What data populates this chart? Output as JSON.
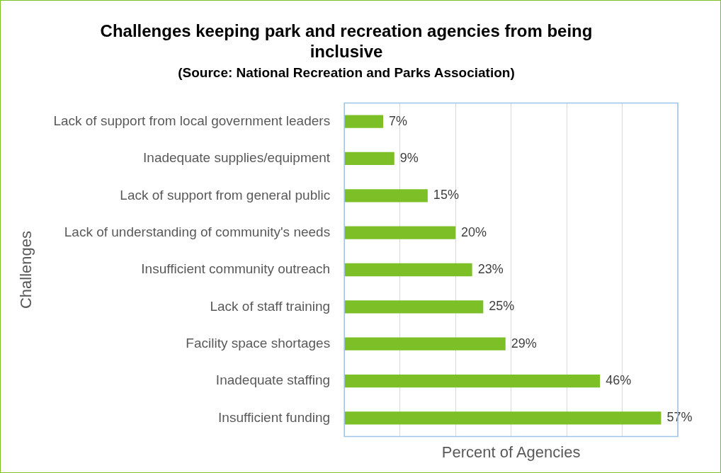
{
  "chart_data": {
    "type": "bar",
    "orientation": "horizontal",
    "title": "Challenges keeping park and recreation agencies from being inclusive",
    "subtitle": "(Source: National Recreation and Parks Association)",
    "xlabel": "Percent of Agencies",
    "ylabel": "Challenges",
    "categories": [
      "Lack of support from local government leaders",
      "Inadequate supplies/equipment",
      "Lack of support from general public",
      "Lack of understanding of community's needs",
      "Insufficient community outreach",
      "Lack of staff training",
      "Facility space shortages",
      "Inadequate staffing",
      "Insufficient funding"
    ],
    "values": [
      7,
      9,
      15,
      20,
      23,
      25,
      29,
      46,
      57
    ],
    "value_labels": [
      "7%",
      "9%",
      "15%",
      "20%",
      "23%",
      "25%",
      "29%",
      "46%",
      "57%"
    ],
    "color": "#7dbf26",
    "xlim": [
      0,
      60
    ],
    "xticks": [
      {
        "value": 0,
        "label": null
      },
      {
        "value": 10,
        "label": null
      },
      {
        "value": 20,
        "label": null
      },
      {
        "value": 30,
        "label": null
      },
      {
        "value": 40,
        "label": null
      },
      {
        "value": 50,
        "label": null
      },
      {
        "value": 60,
        "label": null
      }
    ],
    "grid": "x",
    "tick_labels": "y",
    "legend": false
  }
}
